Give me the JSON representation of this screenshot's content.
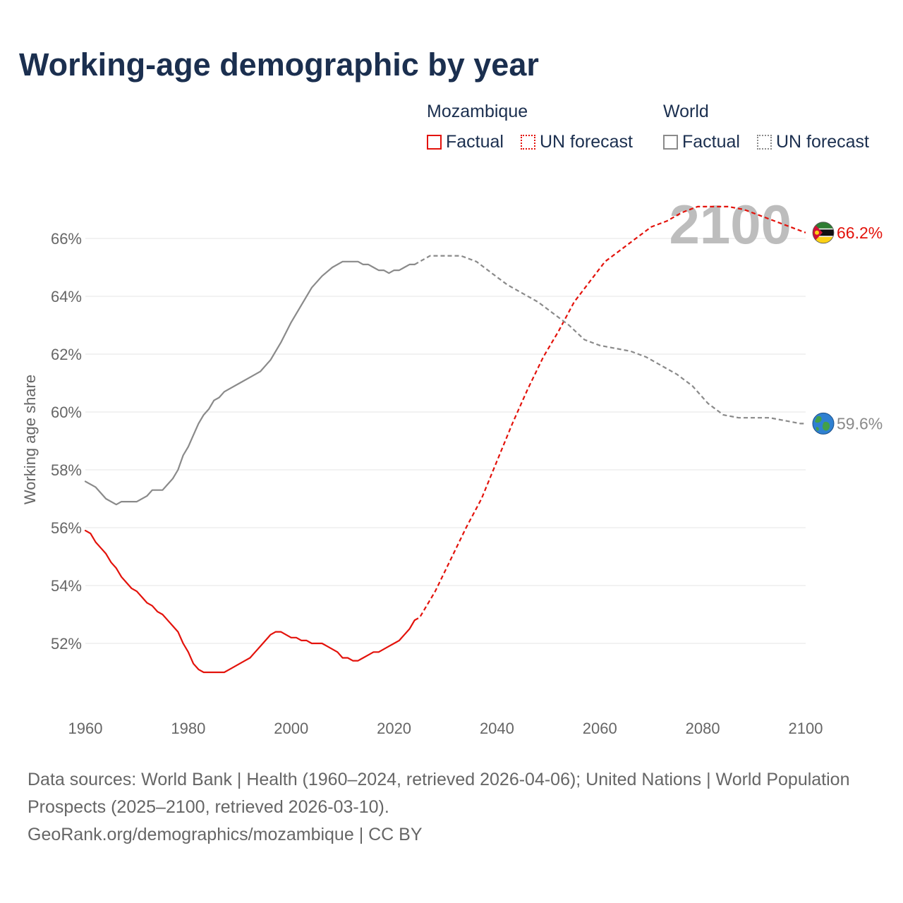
{
  "title": "Working-age demographic by year",
  "legend": {
    "groups": [
      {
        "name": "Mozambique",
        "factual_label": "Factual",
        "forecast_label": "UN forecast",
        "color": "#e3120b"
      },
      {
        "name": "World",
        "factual_label": "Factual",
        "forecast_label": "UN forecast",
        "color": "#8a8a8a"
      }
    ]
  },
  "footer": {
    "sources": "Data sources: World Bank | Health (1960–2024, retrieved 2026-04-06); United Nations | World Population Prospects (2025–2100, retrieved 2026-03-10).",
    "credit": "GeoRank.org/demographics/mozambique | CC BY"
  },
  "chart_data": {
    "type": "line",
    "title": "Working-age demographic by year",
    "xlabel": "",
    "ylabel": "Working age share",
    "xlim": [
      1960,
      2100
    ],
    "ylim": [
      50,
      67.5
    ],
    "x_ticks": [
      1960,
      1980,
      2000,
      2020,
      2040,
      2060,
      2080,
      2100
    ],
    "y_ticks": [
      52,
      54,
      56,
      58,
      60,
      62,
      64,
      66
    ],
    "y_tick_suffix": "%",
    "grid": true,
    "current_year_label": "2100",
    "series": [
      {
        "name": "Mozambique",
        "color": "#e3120b",
        "end_label": "66.2%",
        "end_icon": "mozambique-flag-icon",
        "factual": {
          "x": [
            1960,
            1961,
            1962,
            1963,
            1964,
            1965,
            1966,
            1967,
            1968,
            1969,
            1970,
            1971,
            1972,
            1973,
            1974,
            1975,
            1976,
            1977,
            1978,
            1979,
            1980,
            1981,
            1982,
            1983,
            1984,
            1985,
            1986,
            1987,
            1988,
            1989,
            1990,
            1991,
            1992,
            1993,
            1994,
            1995,
            1996,
            1997,
            1998,
            1999,
            2000,
            2001,
            2002,
            2003,
            2004,
            2005,
            2006,
            2007,
            2008,
            2009,
            2010,
            2011,
            2012,
            2013,
            2014,
            2015,
            2016,
            2017,
            2018,
            2019,
            2020,
            2021,
            2022,
            2023,
            2024
          ],
          "y": [
            55.9,
            55.8,
            55.5,
            55.3,
            55.1,
            54.8,
            54.6,
            54.3,
            54.1,
            53.9,
            53.8,
            53.6,
            53.4,
            53.3,
            53.1,
            53.0,
            52.8,
            52.6,
            52.4,
            52.0,
            51.7,
            51.3,
            51.1,
            51.0,
            51.0,
            51.0,
            51.0,
            51.0,
            51.1,
            51.2,
            51.3,
            51.4,
            51.5,
            51.7,
            51.9,
            52.1,
            52.3,
            52.4,
            52.4,
            52.3,
            52.2,
            52.2,
            52.1,
            52.1,
            52.0,
            52.0,
            52.0,
            51.9,
            51.8,
            51.7,
            51.5,
            51.5,
            51.4,
            51.4,
            51.5,
            51.6,
            51.7,
            51.7,
            51.8,
            51.9,
            52.0,
            52.1,
            52.3,
            52.5,
            52.8
          ]
        },
        "forecast": {
          "x": [
            2024,
            2025,
            2028,
            2031,
            2034,
            2037,
            2040,
            2043,
            2046,
            2049,
            2052,
            2055,
            2058,
            2061,
            2064,
            2067,
            2070,
            2073,
            2076,
            2079,
            2082,
            2085,
            2088,
            2091,
            2094,
            2097,
            2100
          ],
          "y": [
            52.8,
            52.9,
            53.8,
            54.9,
            56.0,
            57.0,
            58.3,
            59.6,
            60.8,
            61.9,
            62.8,
            63.8,
            64.5,
            65.2,
            65.6,
            66.0,
            66.4,
            66.6,
            66.9,
            67.1,
            67.1,
            67.1,
            67.0,
            66.8,
            66.6,
            66.4,
            66.2
          ]
        }
      },
      {
        "name": "World",
        "color": "#8a8a8a",
        "end_label": "59.6%",
        "end_icon": "globe-icon",
        "factual": {
          "x": [
            1960,
            1962,
            1964,
            1966,
            1967,
            1968,
            1970,
            1972,
            1973,
            1975,
            1976,
            1977,
            1978,
            1979,
            1980,
            1981,
            1982,
            1983,
            1984,
            1985,
            1986,
            1987,
            1988,
            1990,
            1992,
            1994,
            1996,
            1998,
            2000,
            2002,
            2004,
            2006,
            2008,
            2010,
            2011,
            2012,
            2013,
            2014,
            2015,
            2016,
            2017,
            2018,
            2019,
            2020,
            2021,
            2022,
            2023,
            2024
          ],
          "y": [
            57.6,
            57.4,
            57.0,
            56.8,
            56.9,
            56.9,
            56.9,
            57.1,
            57.3,
            57.3,
            57.5,
            57.7,
            58.0,
            58.5,
            58.8,
            59.2,
            59.6,
            59.9,
            60.1,
            60.4,
            60.5,
            60.7,
            60.8,
            61.0,
            61.2,
            61.4,
            61.8,
            62.4,
            63.1,
            63.7,
            64.3,
            64.7,
            65.0,
            65.2,
            65.2,
            65.2,
            65.2,
            65.1,
            65.1,
            65.0,
            64.9,
            64.9,
            64.8,
            64.9,
            64.9,
            65.0,
            65.1,
            65.1
          ]
        },
        "forecast": {
          "x": [
            2024,
            2025,
            2027,
            2030,
            2033,
            2036,
            2039,
            2042,
            2045,
            2048,
            2051,
            2054,
            2057,
            2060,
            2063,
            2066,
            2069,
            2072,
            2075,
            2078,
            2081,
            2084,
            2087,
            2090,
            2093,
            2096,
            2099,
            2100
          ],
          "y": [
            65.1,
            65.2,
            65.4,
            65.4,
            65.4,
            65.2,
            64.8,
            64.4,
            64.1,
            63.8,
            63.4,
            63.0,
            62.5,
            62.3,
            62.2,
            62.1,
            61.9,
            61.6,
            61.3,
            60.9,
            60.3,
            59.9,
            59.8,
            59.8,
            59.8,
            59.7,
            59.6,
            59.6
          ]
        }
      }
    ]
  }
}
